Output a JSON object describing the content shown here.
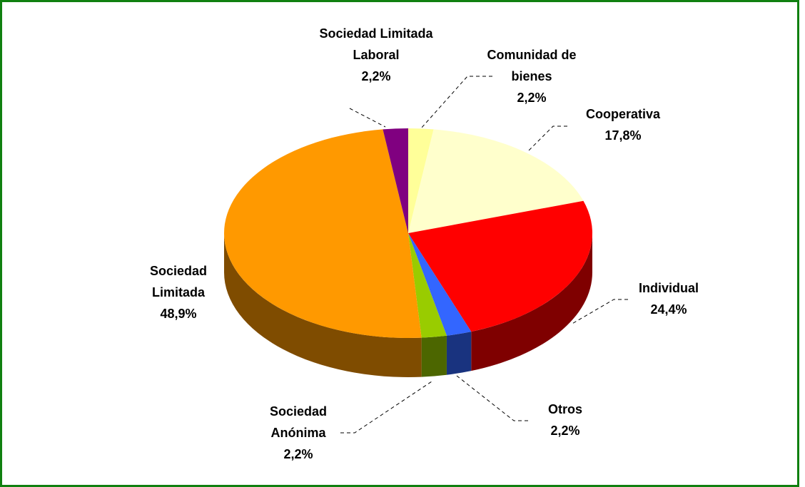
{
  "chart_data": {
    "type": "pie3d",
    "categories": [
      "Comunidad de bienes",
      "Cooperativa",
      "Individual",
      "Otros",
      "Sociedad Anónima",
      "Sociedad Limitada",
      "Sociedad Limitada Laboral"
    ],
    "values": [
      2.2,
      17.8,
      24.4,
      2.2,
      2.2,
      48.9,
      2.2
    ],
    "value_labels": [
      "2,2%",
      "17,8%",
      "24,4%",
      "2,2%",
      "2,2%",
      "48,9%",
      "2,2%"
    ],
    "colors": [
      "#ffff99",
      "#ffffcc",
      "#ff0000",
      "#3366ff",
      "#99cc00",
      "#ff9900",
      "#800080"
    ]
  }
}
